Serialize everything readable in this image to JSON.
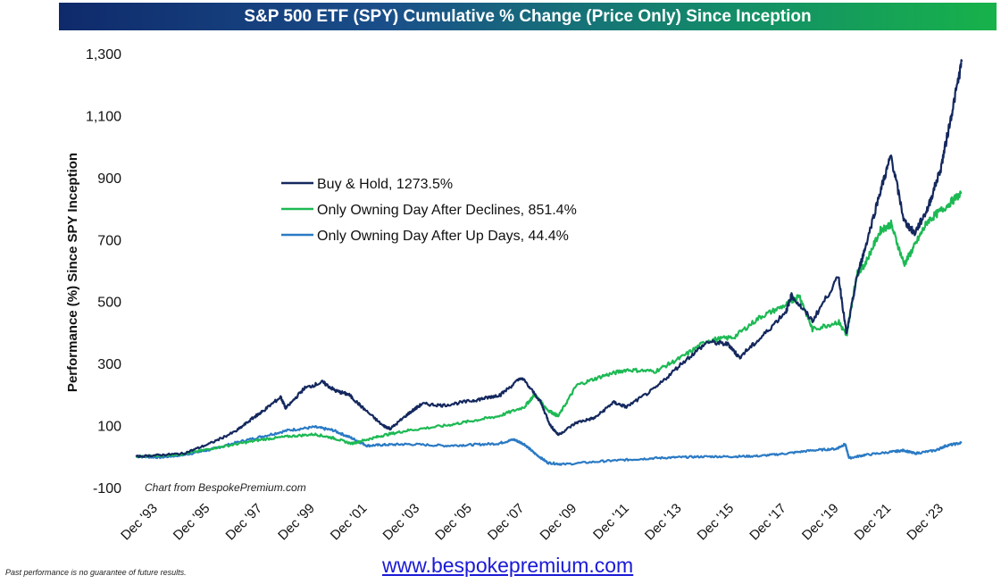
{
  "chart_data": {
    "type": "line",
    "title": "S&P 500 ETF (SPY) Cumulative % Change (Price Only) Since Inception",
    "ylabel": "Performance (%) Since SPY Inception",
    "xlabel": "",
    "ylim": [
      -100,
      1300
    ],
    "xlim": [
      1993.0,
      2024.7
    ],
    "y_ticks": [
      -100,
      100,
      300,
      500,
      700,
      900,
      1100,
      1300
    ],
    "y_tick_labels": [
      "-100",
      "100",
      "300",
      "500",
      "700",
      "900",
      "1,100",
      "1,300"
    ],
    "x_ticks": [
      1993.92,
      1995.92,
      1997.92,
      1999.92,
      2001.92,
      2003.92,
      2005.92,
      2007.92,
      2009.92,
      2011.92,
      2013.92,
      2015.92,
      2017.92,
      2019.92,
      2021.92,
      2023.92
    ],
    "x_tick_labels": [
      "Dec '93",
      "Dec '95",
      "Dec '97",
      "Dec '99",
      "Dec '01",
      "Dec '03",
      "Dec '05",
      "Dec '07",
      "Dec '09",
      "Dec '11",
      "Dec '13",
      "Dec '15",
      "Dec '17",
      "Dec '19",
      "Dec '21",
      "Dec '23"
    ],
    "grid": false,
    "legend_position": "upper-left",
    "annotation": "Chart from BespokePremium.com",
    "series": [
      {
        "name": "Buy & Hold, 1273.5%",
        "color": "#14285e",
        "x": [
          1993.08,
          1994.0,
          1994.9,
          1995.9,
          1996.9,
          1997.6,
          1997.9,
          1998.6,
          1998.8,
          1999.5,
          2000.2,
          2000.7,
          2001.2,
          2001.7,
          2002.5,
          2002.8,
          2003.5,
          2004.0,
          2004.8,
          2005.9,
          2006.5,
          2007.0,
          2007.8,
          2008.5,
          2008.9,
          2009.2,
          2009.9,
          2010.6,
          2011.3,
          2011.8,
          2012.9,
          2013.9,
          2014.9,
          2015.7,
          2016.1,
          2016.9,
          2017.9,
          2018.1,
          2018.9,
          2019.9,
          2020.2,
          2020.6,
          2020.9,
          2021.5,
          2021.9,
          2022.4,
          2022.8,
          2023.3,
          2023.8,
          2024.2,
          2024.6
        ],
        "values": [
          0,
          5,
          10,
          42,
          82,
          128,
          145,
          192,
          155,
          220,
          240,
          212,
          200,
          160,
          100,
          90,
          140,
          170,
          165,
          180,
          190,
          200,
          255,
          180,
          100,
          70,
          110,
          125,
          175,
          160,
          220,
          300,
          370,
          362,
          320,
          380,
          470,
          520,
          438,
          580,
          395,
          580,
          670,
          860,
          970,
          760,
          720,
          800,
          930,
          1100,
          1273.5
        ]
      },
      {
        "name": "Only Owning Day After Declines, 851.4%",
        "color": "#1db954",
        "x": [
          1993.08,
          1994.0,
          1994.9,
          1995.9,
          1996.9,
          1997.9,
          1998.9,
          1999.9,
          2000.6,
          2001.3,
          2001.9,
          2002.6,
          2003.5,
          2004.9,
          2005.9,
          2006.9,
          2007.9,
          2008.3,
          2008.8,
          2009.2,
          2009.9,
          2010.9,
          2011.8,
          2012.9,
          2013.9,
          2014.9,
          2015.9,
          2016.9,
          2017.9,
          2018.4,
          2018.9,
          2019.9,
          2020.2,
          2020.6,
          2020.9,
          2021.5,
          2021.9,
          2022.4,
          2022.8,
          2023.3,
          2023.9,
          2024.6
        ],
        "values": [
          0,
          3,
          8,
          25,
          40,
          55,
          65,
          72,
          60,
          42,
          55,
          70,
          85,
          100,
          115,
          130,
          160,
          200,
          150,
          130,
          230,
          260,
          280,
          275,
          320,
          375,
          385,
          450,
          490,
          520,
          410,
          435,
          390,
          590,
          620,
          730,
          750,
          620,
          680,
          760,
          800,
          851.4
        ]
      },
      {
        "name": "Only Owning Day After Up Days, 44.4%",
        "color": "#2a7ac4",
        "x": [
          1993.08,
          1994.0,
          1994.9,
          1995.9,
          1996.9,
          1997.9,
          1998.9,
          1999.9,
          2000.6,
          2001.3,
          2001.9,
          2002.6,
          2003.5,
          2004.9,
          2005.9,
          2006.9,
          2007.5,
          2007.9,
          2008.3,
          2008.8,
          2009.4,
          2010.9,
          2011.9,
          2012.9,
          2013.9,
          2014.9,
          2015.9,
          2016.9,
          2017.9,
          2018.9,
          2019.8,
          2020.15,
          2020.3,
          2020.9,
          2021.9,
          2022.4,
          2022.8,
          2023.6,
          2024.0,
          2024.6
        ],
        "values": [
          0,
          -3,
          5,
          22,
          45,
          65,
          85,
          95,
          85,
          60,
          35,
          38,
          40,
          35,
          38,
          42,
          55,
          40,
          10,
          -20,
          -25,
          -15,
          -10,
          -5,
          -2,
          0,
          0,
          2,
          10,
          20,
          25,
          40,
          -5,
          5,
          15,
          20,
          10,
          20,
          35,
          44.4
        ]
      }
    ]
  },
  "footer": {
    "disclaimer": "Past performance is no guarantee of future results.",
    "website": "www.bespokepremium.com"
  }
}
